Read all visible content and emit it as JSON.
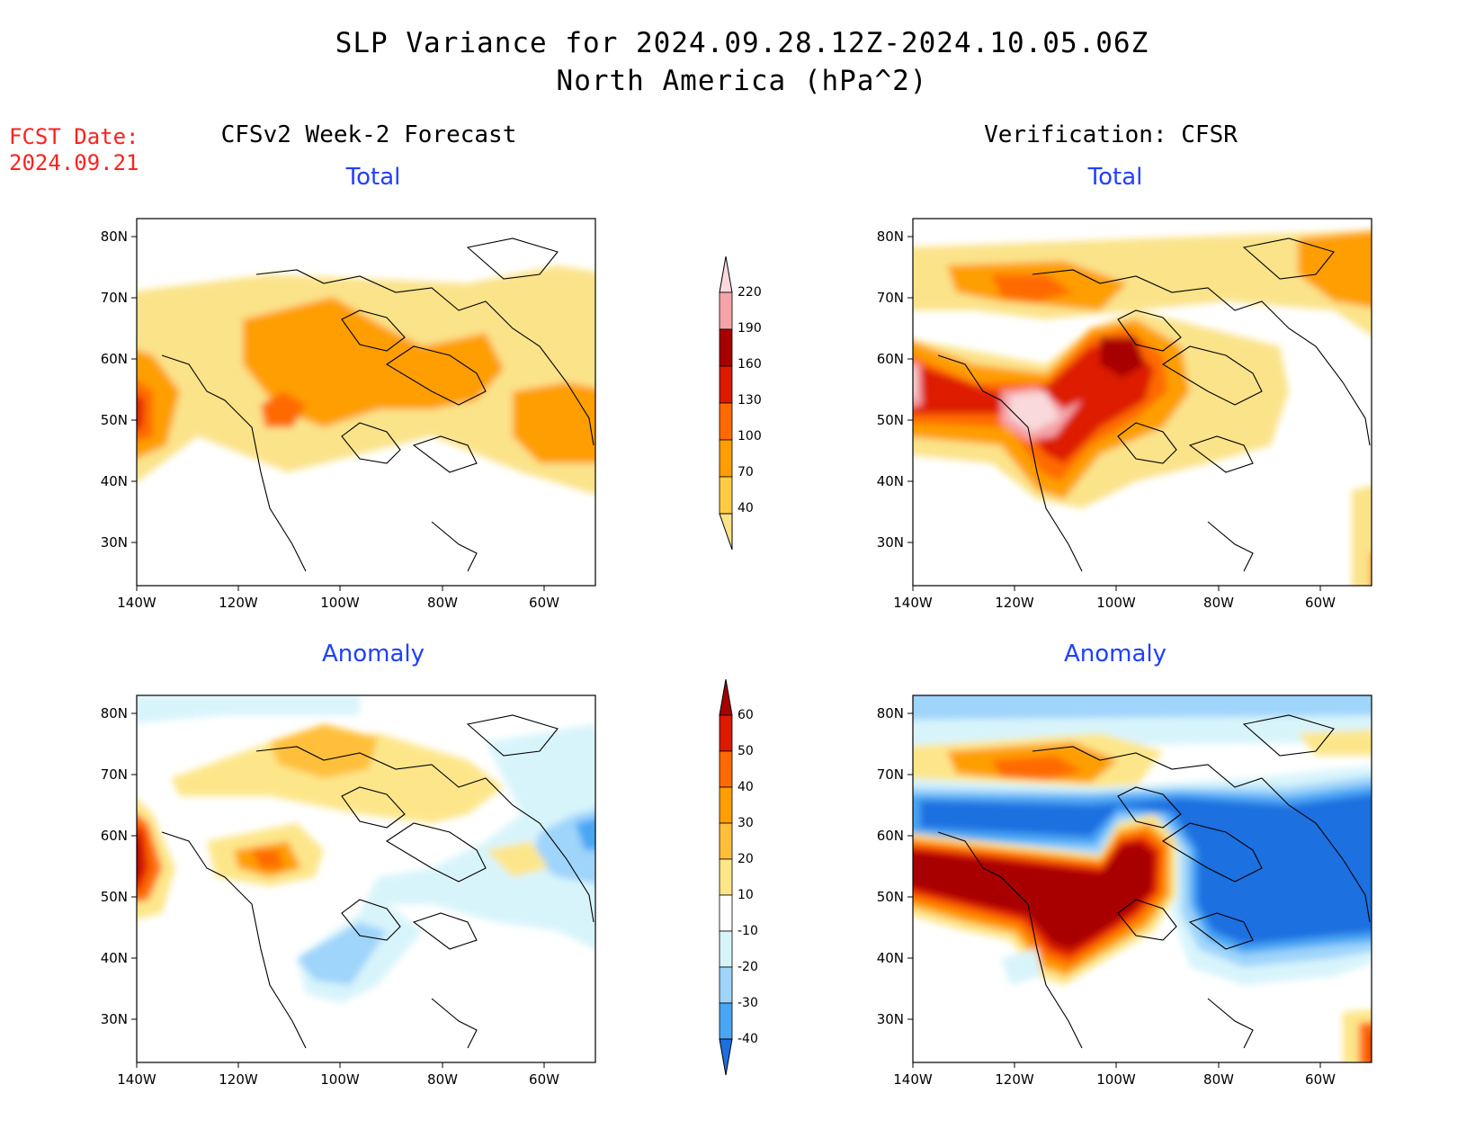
{
  "title": {
    "line1": "SLP Variance for 2024.09.28.12Z-2024.10.05.06Z",
    "line2": "North America (hPa^2)"
  },
  "forecast_date": {
    "label": "FCST Date:",
    "value": "2024.09.21"
  },
  "columns": {
    "left": "CFSv2 Week-2 Forecast",
    "right": "Verification: CFSR"
  },
  "panels": {
    "top_left": "Total",
    "top_right": "Total",
    "bottom_left": "Anomaly",
    "bottom_right": "Anomaly"
  },
  "axes": {
    "lat_labels": [
      "80N",
      "70N",
      "60N",
      "50N",
      "40N",
      "30N"
    ],
    "lon_labels": [
      "140W",
      "120W",
      "100W",
      "80W",
      "60W"
    ]
  },
  "colorbar_total": {
    "levels": [
      "220",
      "190",
      "160",
      "130",
      "100",
      "70",
      "40"
    ],
    "colors": [
      "#f9d9dc",
      "#f4a4a8",
      "#a80000",
      "#dd1a00",
      "#ff6a00",
      "#ff9e00",
      "#ffcc44",
      "#fbe38a"
    ]
  },
  "colorbar_anomaly": {
    "levels": [
      "60",
      "50",
      "40",
      "30",
      "20",
      "10",
      "-10",
      "-20",
      "-30",
      "-40"
    ],
    "colors": [
      "#a80000",
      "#dd1a00",
      "#ff6a00",
      "#ff9e00",
      "#ffbf3a",
      "#fde68a",
      "#ffffff",
      "#d8f4fb",
      "#9fd4fb",
      "#49a6f4",
      "#1e6fe0"
    ]
  }
}
